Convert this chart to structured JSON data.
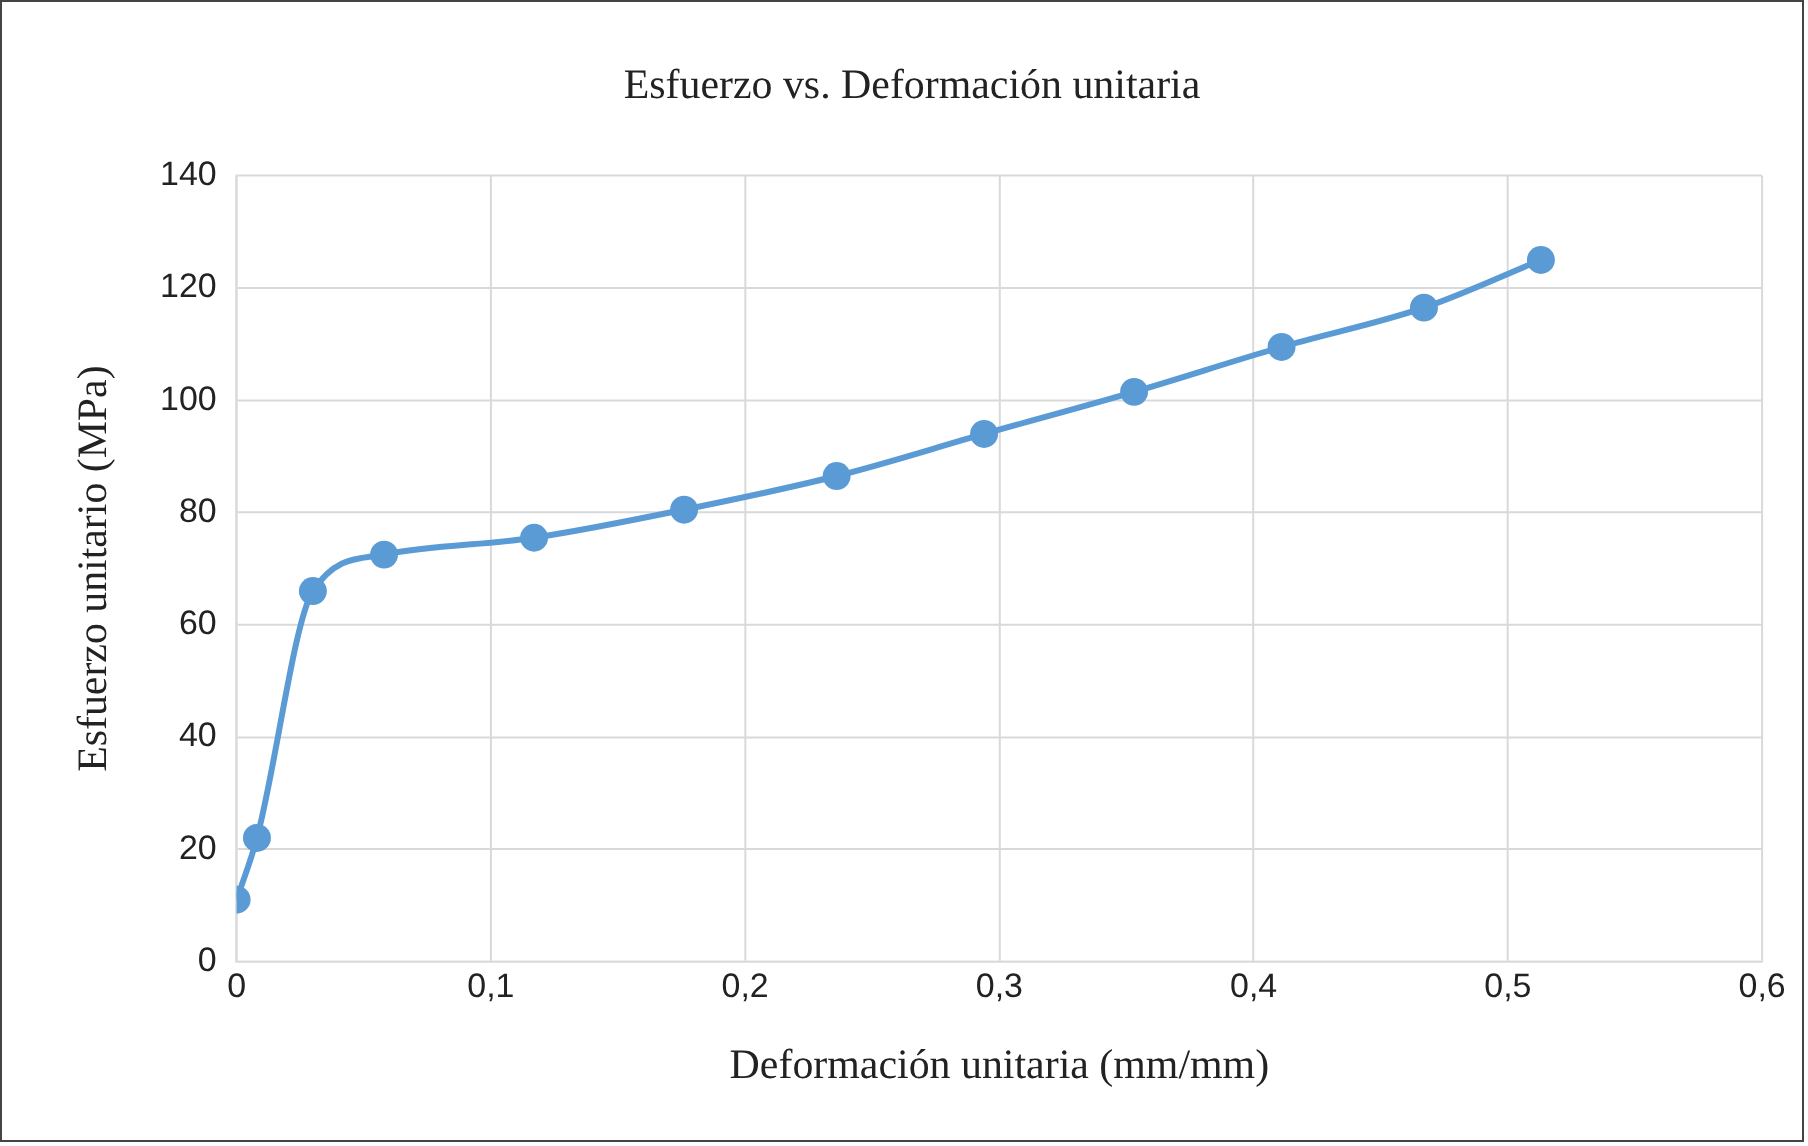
{
  "chart_data": {
    "type": "line",
    "title": "Esfuerzo vs. Deformación unitaria",
    "xlabel": "Deformación unitaria (mm/mm)",
    "ylabel": "Esfuerzo unitario (MPa)",
    "x": [
      0,
      0.008,
      0.03,
      0.058,
      0.117,
      0.176,
      0.236,
      0.294,
      0.353,
      0.411,
      0.467,
      0.513
    ],
    "series": [
      {
        "color": "#5b9bd5",
        "values": [
          11,
          22,
          66,
          72.5,
          75.5,
          80.5,
          86.5,
          94,
          101.5,
          109.5,
          116.5,
          125
        ]
      }
    ],
    "xlim": [
      0,
      0.6
    ],
    "xticks": [
      {
        "value": 0,
        "label": "0"
      },
      {
        "value": 0.1,
        "label": "0,1"
      },
      {
        "value": 0.2,
        "label": "0,2"
      },
      {
        "value": 0.3,
        "label": "0,3"
      },
      {
        "value": 0.4,
        "label": "0,4"
      },
      {
        "value": 0.5,
        "label": "0,5"
      },
      {
        "value": 0.6,
        "label": "0,6"
      }
    ],
    "ylim": [
      0,
      140
    ],
    "yticks": [
      0,
      20,
      40,
      60,
      80,
      100,
      120,
      140
    ],
    "grid": true,
    "legend": false,
    "marker": "circle",
    "line_style": "solid"
  }
}
